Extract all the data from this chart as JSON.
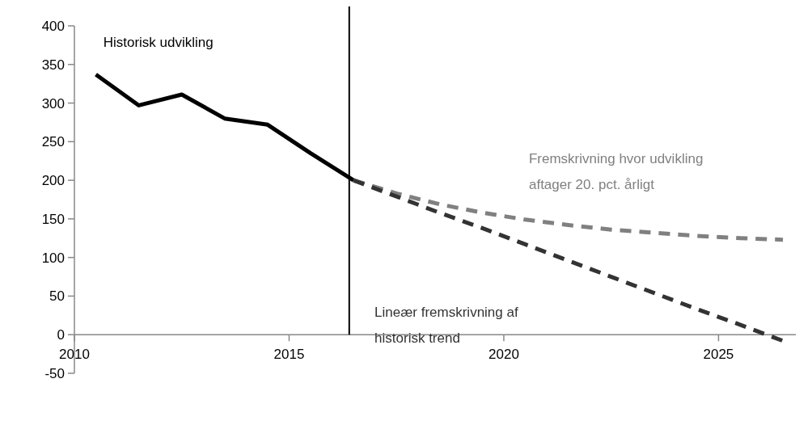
{
  "chart_data": {
    "type": "line",
    "x": [
      2010.5,
      2011.5,
      2012.5,
      2013.5,
      2014.5,
      2015.5,
      2016.5
    ],
    "series": [
      {
        "name": "Historisk udvikling",
        "color": "#000000",
        "line_style": "solid",
        "values": [
          337,
          297,
          311,
          280,
          272,
          235,
          200
        ]
      },
      {
        "name": "Fremskrivning hvor udvikling aftager 20. pct. årligt",
        "color": "#808080",
        "line_style": "dashed",
        "x": [
          2016.5,
          2017.5,
          2018.5,
          2019.5,
          2020.5,
          2021.5,
          2022.5,
          2023.5,
          2024.5,
          2025.5,
          2026.5
        ],
        "values": [
          200,
          183,
          169,
          158,
          149,
          142,
          136,
          132,
          128,
          125,
          123
        ]
      },
      {
        "name": "Lineær fremskrivning af historisk trend",
        "color": "#333333",
        "line_style": "dashed",
        "x": [
          2016.5,
          2017.5,
          2018.5,
          2019.5,
          2020.5,
          2021.5,
          2022.5,
          2023.5,
          2024.5,
          2025.5,
          2026.5
        ],
        "values": [
          200,
          179,
          158,
          138,
          117,
          96,
          75,
          54,
          33,
          13,
          -8
        ]
      }
    ],
    "xlim": [
      2010,
      2026.8
    ],
    "xticks": [
      2010,
      2015,
      2020,
      2025
    ],
    "ylim": [
      -50,
      400
    ],
    "yticks": [
      -50,
      0,
      50,
      100,
      150,
      200,
      250,
      300,
      350,
      400
    ],
    "ref_lines": [
      {
        "axis": "x",
        "value": 2016.4,
        "color": "#000000"
      }
    ],
    "grid": false,
    "legend": false
  }
}
